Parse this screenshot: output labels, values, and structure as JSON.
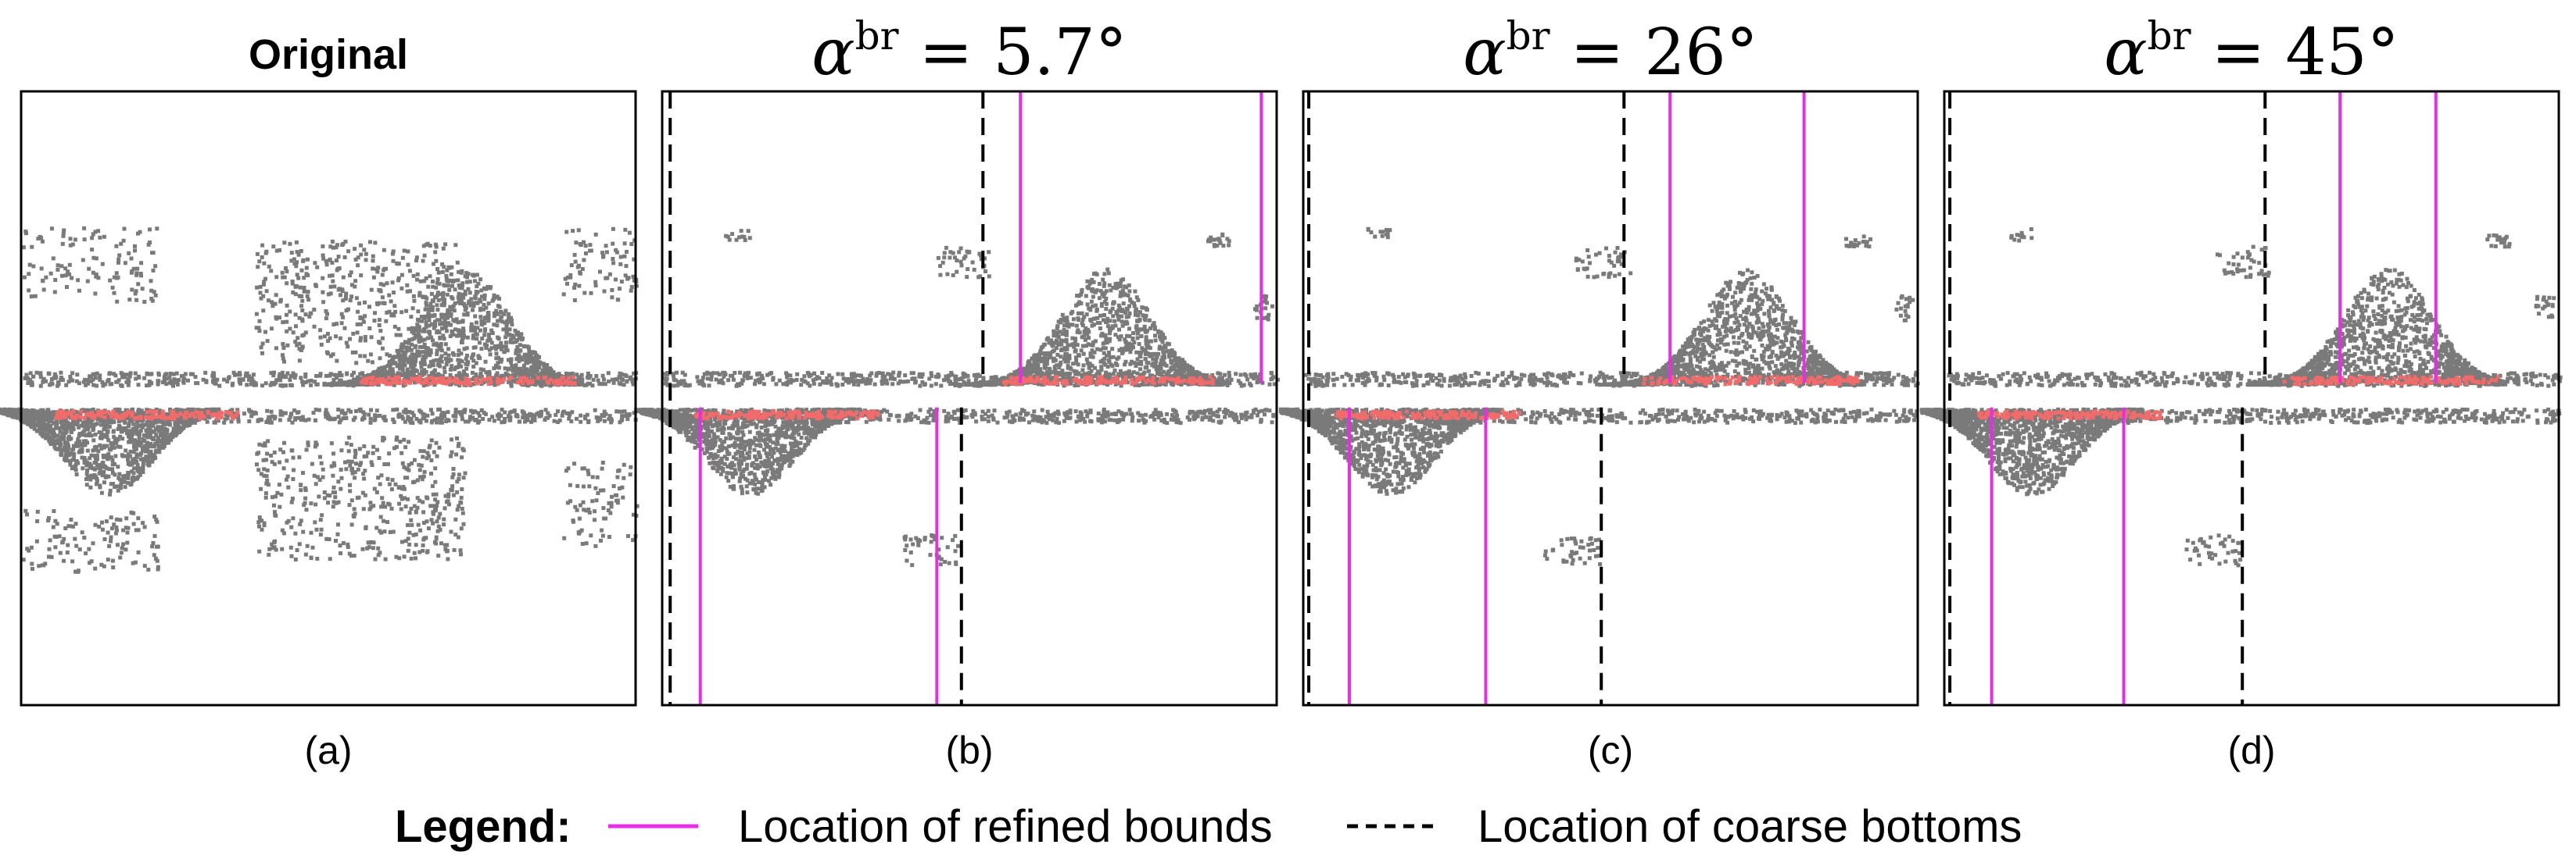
{
  "figure": {
    "panels": [
      {
        "id": "a",
        "title_text": "Original",
        "title_style": "plain",
        "caption": "(a)",
        "refined_bounds": [],
        "coarse_bottoms": [],
        "variant": "original"
      },
      {
        "id": "b",
        "title_prefix": "α",
        "title_sup": "br",
        "title_suffix": " = 5.7°",
        "title_style": "math",
        "caption": "(b)",
        "refined_bounds": [
          {
            "pos": 0.583,
            "half": "upper"
          },
          {
            "pos": 0.975,
            "half": "upper"
          },
          {
            "pos": 0.062,
            "half": "lower"
          },
          {
            "pos": 0.447,
            "half": "lower"
          }
        ],
        "coarse_bottoms": [
          {
            "pos": 0.013,
            "half": "full"
          },
          {
            "pos": 0.522,
            "half": "upper"
          },
          {
            "pos": 0.487,
            "half": "lower"
          }
        ],
        "variant": "filtered"
      },
      {
        "id": "c",
        "title_prefix": "α",
        "title_sup": "br",
        "title_suffix": " = 26°",
        "title_style": "math",
        "caption": "(c)",
        "refined_bounds": [
          {
            "pos": 0.597,
            "half": "upper"
          },
          {
            "pos": 0.815,
            "half": "upper"
          },
          {
            "pos": 0.075,
            "half": "lower"
          },
          {
            "pos": 0.297,
            "half": "lower"
          }
        ],
        "coarse_bottoms": [
          {
            "pos": 0.009,
            "half": "full"
          },
          {
            "pos": 0.522,
            "half": "upper"
          },
          {
            "pos": 0.485,
            "half": "lower"
          }
        ],
        "variant": "filtered"
      },
      {
        "id": "d",
        "title_prefix": "α",
        "title_sup": "br",
        "title_suffix": " = 45°",
        "title_style": "math",
        "caption": "(d)",
        "refined_bounds": [
          {
            "pos": 0.644,
            "half": "upper"
          },
          {
            "pos": 0.8,
            "half": "upper"
          },
          {
            "pos": 0.077,
            "half": "lower"
          },
          {
            "pos": 0.292,
            "half": "lower"
          }
        ],
        "coarse_bottoms": [
          {
            "pos": 0.009,
            "half": "full"
          },
          {
            "pos": 0.522,
            "half": "upper"
          },
          {
            "pos": 0.485,
            "half": "lower"
          }
        ],
        "variant": "filtered"
      }
    ],
    "legend": {
      "title": "Legend:",
      "refined_label": "Location of refined bounds",
      "coarse_label": "Location of coarse bottoms"
    },
    "colors": {
      "refined": "#e62ee6",
      "coarse": "#000000",
      "scatter": "#7a7a7a",
      "highlight": "#f26b6b",
      "accent": "#e8501e"
    }
  }
}
